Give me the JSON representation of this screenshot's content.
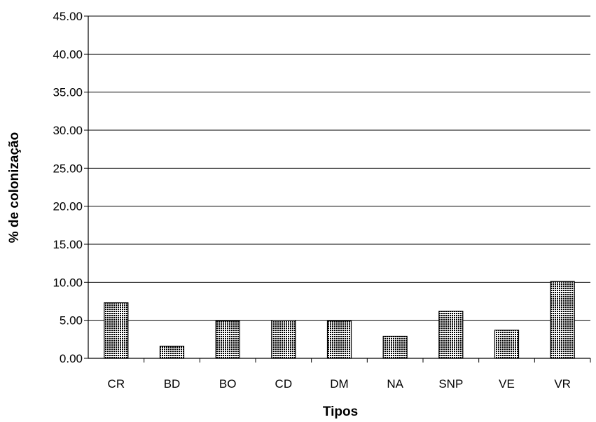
{
  "chart_data": {
    "type": "bar",
    "title": "",
    "xlabel": "Tipos",
    "ylabel": "% de colonização",
    "categories": [
      "CR",
      "BD",
      "BO",
      "CD",
      "DM",
      "NA",
      "SNP",
      "VE",
      "VR"
    ],
    "values": [
      7.3,
      1.6,
      4.9,
      5.0,
      4.9,
      2.9,
      6.2,
      3.7,
      10.1
    ],
    "ylim": [
      0,
      45
    ],
    "ytick_step": 5,
    "ytick_labels": [
      "0.00",
      "5.00",
      "10.00",
      "15.00",
      "20.00",
      "25.00",
      "30.00",
      "35.00",
      "40.00",
      "45.00"
    ],
    "grid": "horizontal",
    "legend": "none",
    "bar_pattern": "dark-grid-texture"
  }
}
